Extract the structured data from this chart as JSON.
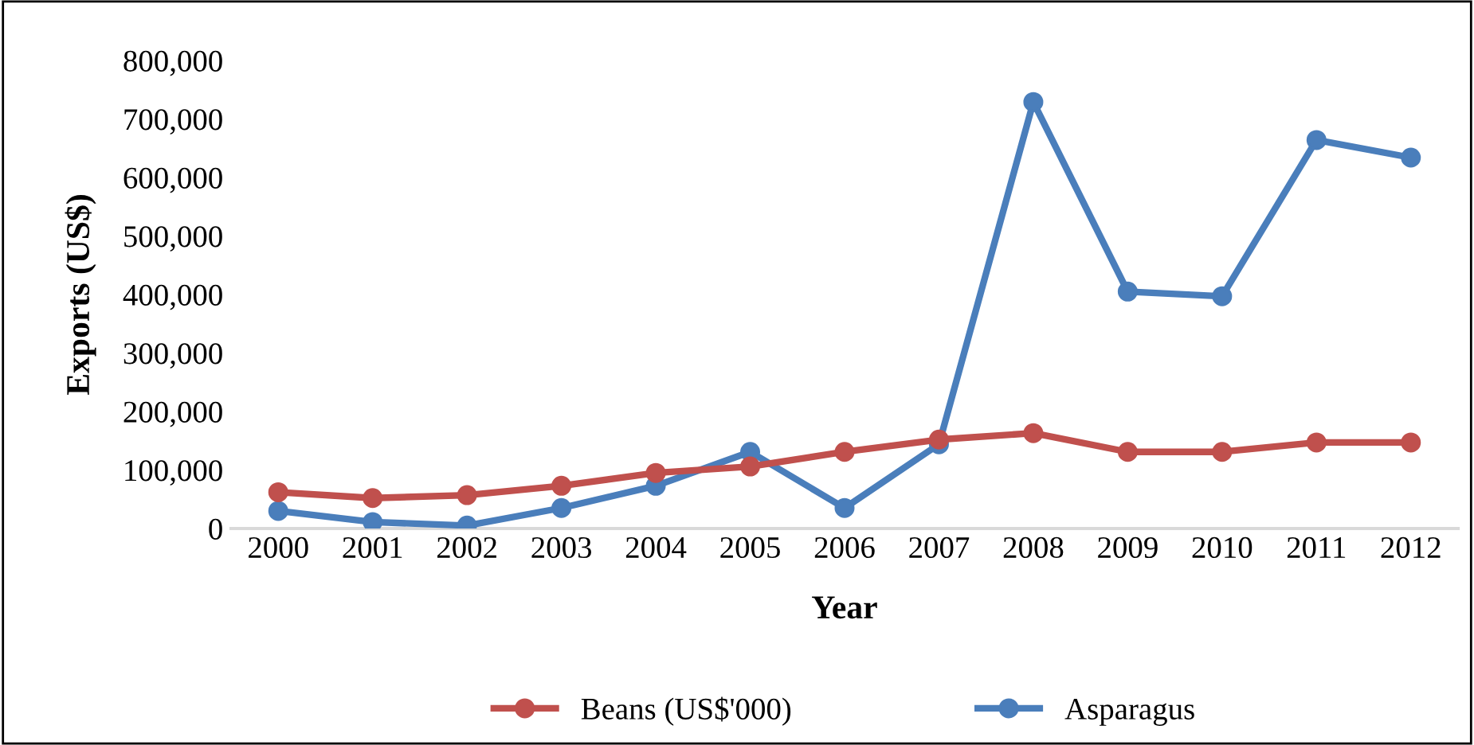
{
  "chart_data": {
    "type": "line",
    "xlabel": "Year",
    "ylabel": "Exports (US$)",
    "categories": [
      "2000",
      "2001",
      "2002",
      "2003",
      "2004",
      "2005",
      "2006",
      "2007",
      "2008",
      "2009",
      "2010",
      "2011",
      "2012"
    ],
    "series": [
      {
        "name": "Beans (US$'000)",
        "color": "#c0504d",
        "values": [
          62000,
          52000,
          57000,
          73000,
          95000,
          106000,
          131000,
          152000,
          163000,
          131000,
          131000,
          147000,
          147000
        ]
      },
      {
        "name": "Asparagus",
        "color": "#4a7ebb",
        "values": [
          30000,
          11000,
          5000,
          35000,
          73000,
          131000,
          35000,
          144000,
          729000,
          405000,
          397000,
          664000,
          634000
        ]
      }
    ],
    "ylim": [
      0,
      800000
    ],
    "yticks": [
      {
        "value": 0,
        "label": "0"
      },
      {
        "value": 100000,
        "label": "100,000"
      },
      {
        "value": 200000,
        "label": "200,000"
      },
      {
        "value": 300000,
        "label": "300,000"
      },
      {
        "value": 400000,
        "label": "400,000"
      },
      {
        "value": 500000,
        "label": "500,000"
      },
      {
        "value": 600000,
        "label": "600,000"
      },
      {
        "value": 700000,
        "label": "700,000"
      },
      {
        "value": 800000,
        "label": "800,000"
      }
    ],
    "grid": false,
    "legend": "bottom",
    "marker": "circle",
    "line_style": "solid"
  }
}
